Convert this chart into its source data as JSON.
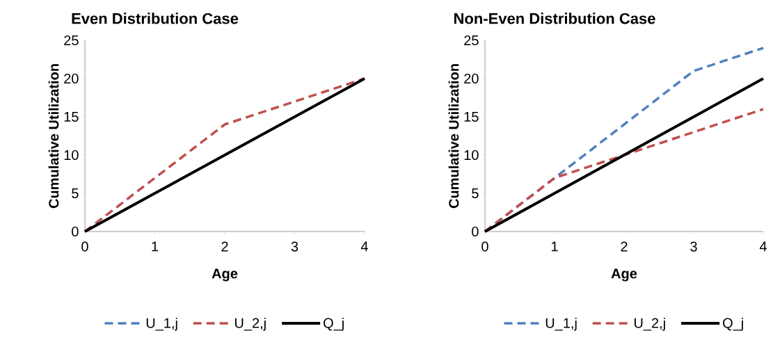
{
  "chart_data": [
    {
      "type": "line",
      "title": "Even Distribution Case",
      "xlabel": "Age",
      "ylabel": "Cumulative Utilization",
      "x": [
        0,
        1,
        2,
        3,
        4
      ],
      "xlim": [
        0,
        4
      ],
      "ylim": [
        0,
        25
      ],
      "xticks": [
        0,
        1,
        2,
        3,
        4
      ],
      "yticks": [
        0,
        5,
        10,
        15,
        20,
        25
      ],
      "legend": "bottom",
      "series": [
        {
          "name": "U_1,j",
          "color": "#4f81bd",
          "line_style": "dashed",
          "values": [
            null,
            null,
            null,
            null,
            null
          ]
        },
        {
          "name": "U_2,j",
          "color": "#c0504d",
          "line_style": "dashed",
          "values": [
            0,
            7,
            14,
            17,
            20
          ]
        },
        {
          "name": "Q_j",
          "color": "#000000",
          "line_style": "solid",
          "values": [
            0,
            5,
            10,
            15,
            20
          ]
        }
      ]
    },
    {
      "type": "line",
      "title": "Non-Even Distribution Case",
      "xlabel": "Age",
      "ylabel": "Cumulative Utilization",
      "x": [
        0,
        1,
        2,
        3,
        4
      ],
      "xlim": [
        0,
        4
      ],
      "ylim": [
        0,
        25
      ],
      "xticks": [
        0,
        1,
        2,
        3,
        4
      ],
      "yticks": [
        0,
        5,
        10,
        15,
        20,
        25
      ],
      "legend": "bottom",
      "series": [
        {
          "name": "U_1,j",
          "color": "#4f81bd",
          "line_style": "dashed",
          "values": [
            0,
            7,
            14,
            21,
            24
          ]
        },
        {
          "name": "U_2,j",
          "color": "#c0504d",
          "line_style": "dashed",
          "values": [
            0,
            7,
            10,
            13,
            16
          ]
        },
        {
          "name": "Q_j",
          "color": "#000000",
          "line_style": "solid",
          "values": [
            0,
            5,
            10,
            15,
            20
          ]
        }
      ]
    }
  ]
}
